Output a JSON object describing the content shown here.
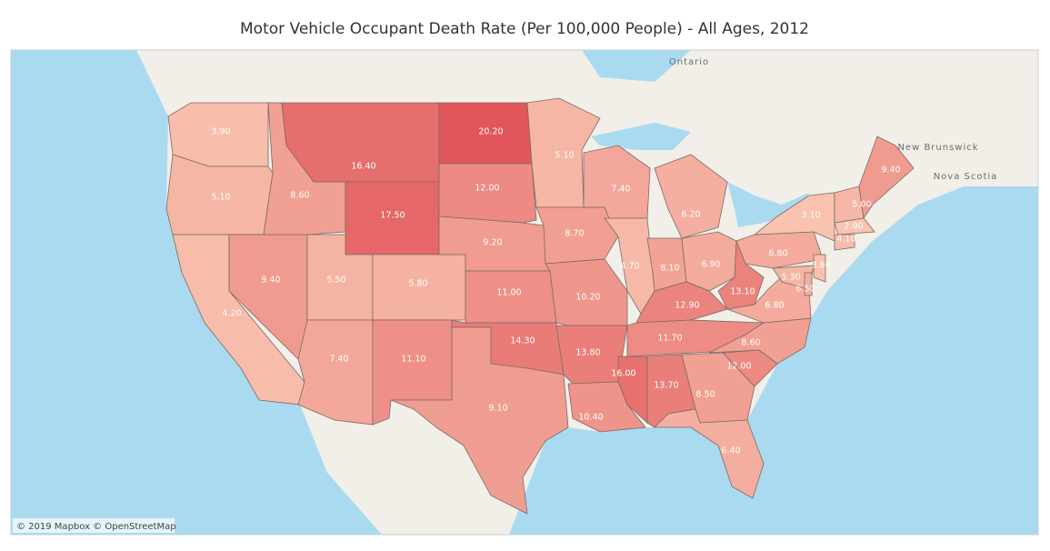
{
  "title": "Motor Vehicle Occupant Death Rate (Per 100,000 People) - All Ages, 2012",
  "map": {
    "regions": [
      {
        "value": 3.9,
        "label": "3.90"
      },
      {
        "value": 5.1,
        "label": "5.10"
      },
      {
        "value": 4.2,
        "label": "4.20"
      },
      {
        "value": 9.4,
        "label": "9.40"
      },
      {
        "value": 8.6,
        "label": "8.60"
      },
      {
        "value": 16.4,
        "label": "16.40"
      },
      {
        "value": 17.5,
        "label": "17.50"
      },
      {
        "value": 5.5,
        "label": "5.50"
      },
      {
        "value": 5.8,
        "label": "5.80"
      },
      {
        "value": 7.4,
        "label": "7.40"
      },
      {
        "value": 11.1,
        "label": "11.10"
      },
      {
        "value": 20.2,
        "label": "20.20"
      },
      {
        "value": 12.0,
        "label": "12.00"
      },
      {
        "value": 9.2,
        "label": "9.20"
      },
      {
        "value": 11.0,
        "label": "11.00"
      },
      {
        "value": 14.3,
        "label": "14.30"
      },
      {
        "value": 9.1,
        "label": "9.10"
      },
      {
        "value": 5.1,
        "label": "5.10"
      },
      {
        "value": 8.7,
        "label": "8.70"
      },
      {
        "value": 10.2,
        "label": "10.20"
      },
      {
        "value": 13.8,
        "label": "13.80"
      },
      {
        "value": 10.4,
        "label": "10.40"
      },
      {
        "value": 7.4,
        "label": "7.40"
      },
      {
        "value": 4.7,
        "label": "4.70"
      },
      {
        "value": 6.2,
        "label": "6.20"
      },
      {
        "value": 8.1,
        "label": "8.10"
      },
      {
        "value": 6.9,
        "label": "6.90"
      },
      {
        "value": 12.9,
        "label": "12.90"
      },
      {
        "value": 11.7,
        "label": "11.70"
      },
      {
        "value": 16.0,
        "label": "16.00"
      },
      {
        "value": 13.7,
        "label": "13.70"
      },
      {
        "value": 8.5,
        "label": "8.50"
      },
      {
        "value": 6.4,
        "label": "6.40"
      },
      {
        "value": 12.0,
        "label": "12.00"
      },
      {
        "value": 8.6,
        "label": "8.60"
      },
      {
        "value": 6.8,
        "label": "6.80"
      },
      {
        "value": 13.1,
        "label": "13.10"
      },
      {
        "value": 6.8,
        "label": "6.80"
      },
      {
        "value": 3.1,
        "label": "3.10"
      },
      {
        "value": 5.0,
        "label": "5.00"
      },
      {
        "value": 9.4,
        "label": "9.40"
      },
      {
        "value": 2.9,
        "label": "2.90"
      },
      {
        "value": 4.1,
        "label": "4.10"
      },
      {
        "value": 3.6,
        "label": "3.60"
      },
      {
        "value": 5.3,
        "label": "5.30"
      },
      {
        "value": 6.5,
        "label": "6.50"
      }
    ],
    "places": [
      "Ontario",
      "New Brunswick",
      "Nova Scotia"
    ],
    "attribution": "© 2019 Mapbox © OpenStreetMap"
  }
}
